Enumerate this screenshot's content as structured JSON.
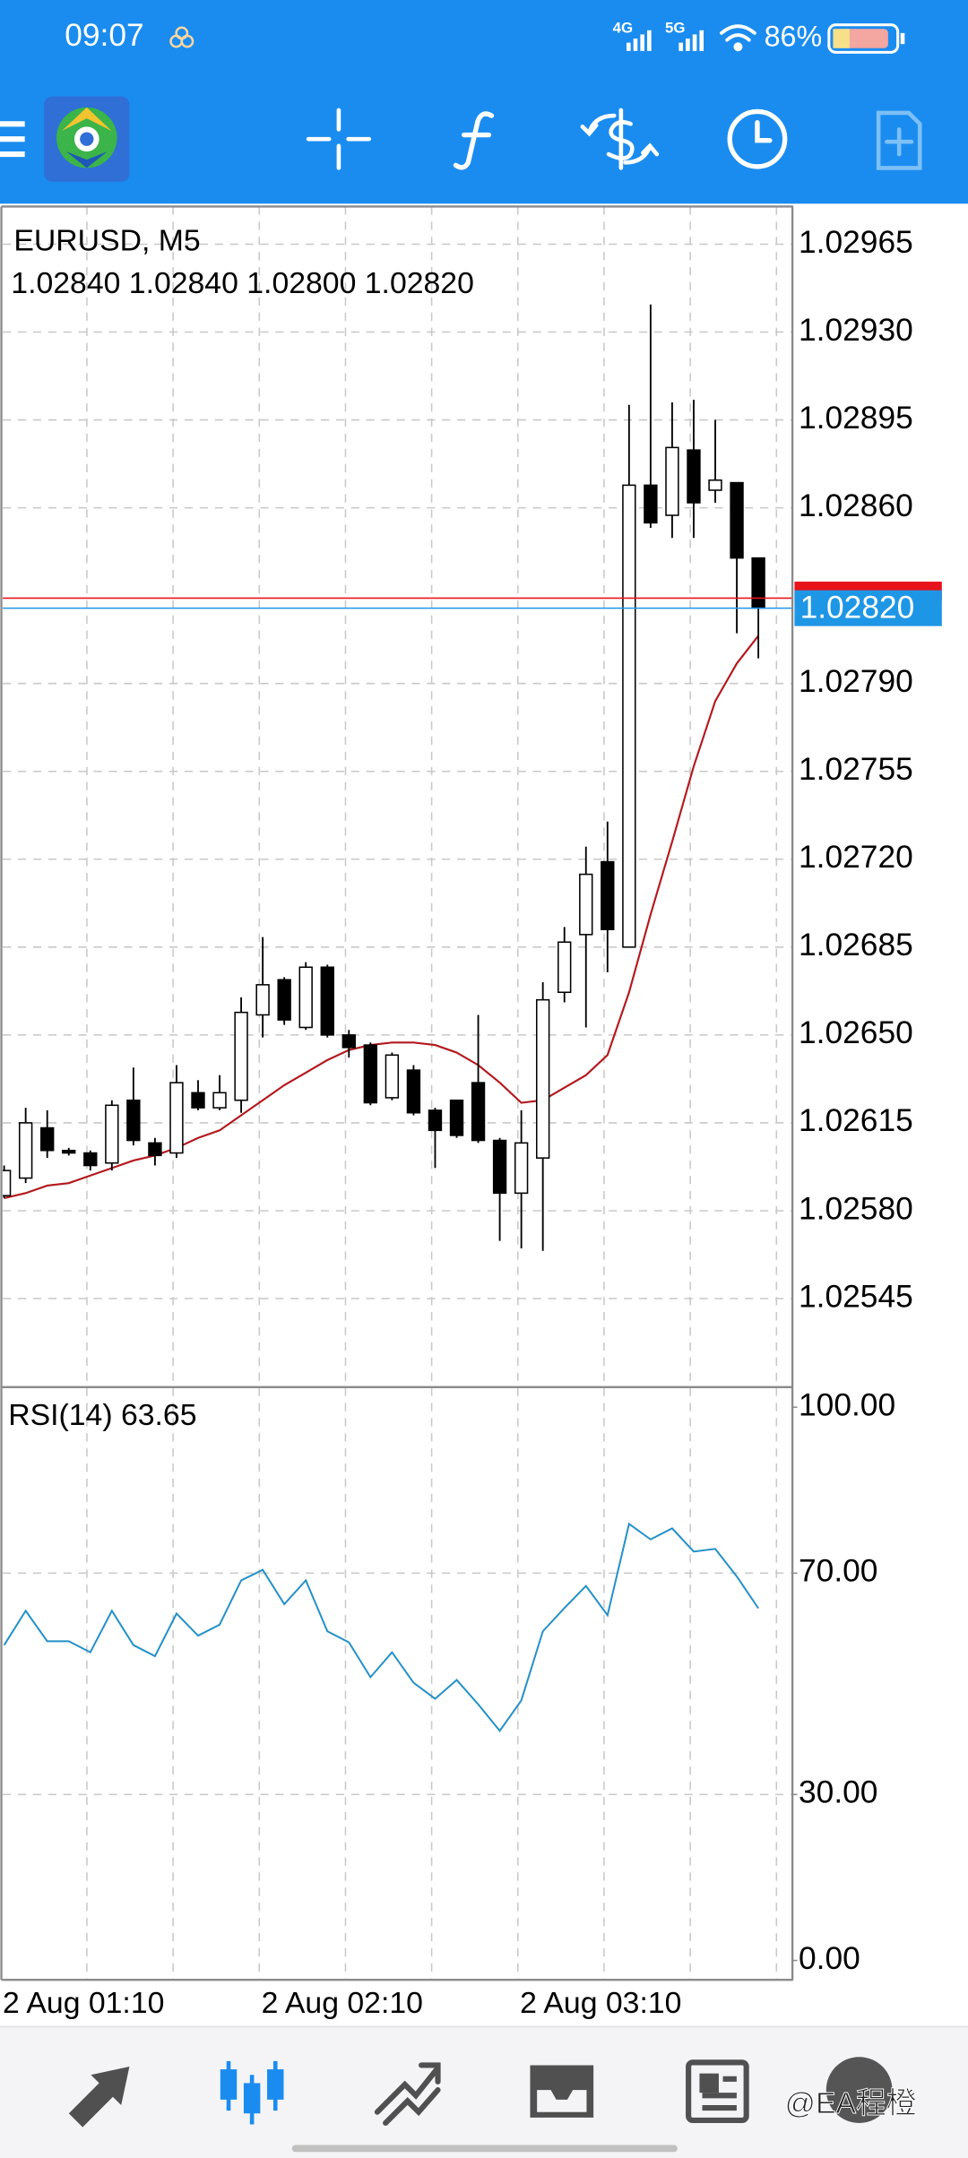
{
  "status_bar": {
    "time": "09:07",
    "network_1": "4G",
    "network_2": "5G",
    "battery": "86%"
  },
  "watermark": "@EA程橙",
  "chart_data": [
    {
      "type": "candlestick",
      "title": "EURUSD, M5",
      "subtitle": "1.02840 1.02840 1.02800 1.02820",
      "categories": [
        "2 Aug 01:10",
        null,
        null,
        null,
        null,
        null,
        null,
        null,
        null,
        null,
        null,
        null,
        "2 Aug 02:10",
        null,
        null,
        null,
        null,
        null,
        null,
        null,
        null,
        null,
        null,
        null,
        "2 Aug 03:10",
        null,
        null,
        null,
        null,
        null,
        null,
        null,
        null,
        null,
        null,
        null
      ],
      "open": [
        1.02586,
        1.02593,
        1.02613,
        1.02604,
        1.02603,
        1.02599,
        1.02624,
        1.02607,
        1.02603,
        1.02627,
        1.02621,
        1.02624,
        1.02658,
        1.02672,
        1.02653,
        1.02677,
        1.0265,
        1.02646,
        1.02625,
        1.02636,
        1.0262,
        1.02624,
        1.02631,
        1.02608,
        1.02587,
        1.02601,
        1.02667,
        1.0269,
        1.02719,
        1.02685,
        1.02869,
        1.02857,
        1.02883,
        1.02867,
        1.0287,
        1.0284
      ],
      "high": [
        1.02598,
        1.02621,
        1.0262,
        1.02605,
        1.02604,
        1.02624,
        1.02637,
        1.02609,
        1.02638,
        1.02632,
        1.02634,
        1.02665,
        1.02689,
        1.02673,
        1.02679,
        1.02678,
        1.02652,
        1.02647,
        1.02643,
        1.02638,
        1.02621,
        1.02624,
        1.02658,
        1.02609,
        1.0262,
        1.02671,
        1.02693,
        1.02725,
        1.02735,
        1.02901,
        1.02941,
        1.02902,
        1.02903,
        1.02895,
        1.0287,
        1.0284
      ],
      "low": [
        1.02585,
        1.02591,
        1.02601,
        1.02602,
        1.02596,
        1.02596,
        1.02606,
        1.02598,
        1.02601,
        1.0262,
        1.0262,
        1.02619,
        1.02649,
        1.02654,
        1.02652,
        1.02649,
        1.02641,
        1.02622,
        1.02624,
        1.02618,
        1.02597,
        1.02609,
        1.02607,
        1.02568,
        1.02565,
        1.02564,
        1.02663,
        1.02653,
        1.02675,
        1.02685,
        1.02852,
        1.02848,
        1.02848,
        1.02862,
        1.0281,
        1.028
      ],
      "close": [
        1.02596,
        1.02615,
        1.02604,
        1.02603,
        1.02598,
        1.02622,
        1.02608,
        1.02602,
        1.02631,
        1.02621,
        1.02627,
        1.02659,
        1.0267,
        1.02656,
        1.02677,
        1.0265,
        1.02645,
        1.02623,
        1.02642,
        1.02619,
        1.02612,
        1.0261,
        1.02608,
        1.02587,
        1.02607,
        1.02664,
        1.02687,
        1.02714,
        1.02692,
        1.02869,
        1.02854,
        1.02884,
        1.02862,
        1.02871,
        1.0284,
        1.0282
      ],
      "up_color": "#ffffff",
      "down_color": "#000000",
      "ma": {
        "color": "#b3191e",
        "values": [
          1.02585,
          1.02587,
          1.0259,
          1.02591,
          1.02594,
          1.02597,
          1.026,
          1.02602,
          1.02605,
          1.02609,
          1.02612,
          1.02618,
          1.02624,
          1.0263,
          1.02635,
          1.0264,
          1.02644,
          1.02646,
          1.02647,
          1.02647,
          1.02646,
          1.02643,
          1.02638,
          1.02631,
          1.02623,
          1.02624,
          1.02629,
          1.02634,
          1.02642,
          1.02667,
          1.02698,
          1.02727,
          1.02757,
          1.02783,
          1.02798,
          1.02809
        ]
      },
      "ask": {
        "value": 1.02824,
        "color": "#e8141c"
      },
      "bid": {
        "value": 1.0282,
        "label": "1.02820",
        "color": "#1e96e6"
      },
      "ylim": [
        1.0251,
        1.0298
      ],
      "yticks": [
        1.02965,
        {
          "value": 1.0293,
          "label": "1.02930"
        },
        1.02895,
        {
          "value": 1.0286,
          "label": "1.02860"
        },
        {
          "value": 1.0279,
          "label": "1.02790"
        },
        1.02755,
        {
          "value": 1.0272,
          "label": "1.02720"
        },
        1.02685,
        {
          "value": 1.0265,
          "label": "1.02650"
        },
        1.02615,
        {
          "value": 1.0258,
          "label": "1.02580"
        },
        1.02545
      ],
      "grid": true
    },
    {
      "type": "line",
      "title": "RSI(14) 63.65",
      "color": "#2390c8",
      "values": [
        57.0,
        63.2,
        57.7,
        57.7,
        55.7,
        63.2,
        57.0,
        55.0,
        62.7,
        58.7,
        60.7,
        68.7,
        70.6,
        64.4,
        68.7,
        59.5,
        57.5,
        51.2,
        55.7,
        50.2,
        47.3,
        50.7,
        46.3,
        41.5,
        47.0,
        59.5,
        63.7,
        67.7,
        62.4,
        78.9,
        76.1,
        78.1,
        73.9,
        74.4,
        69.4,
        63.65
      ],
      "levels": [
        70,
        30
      ],
      "ylim": [
        -3.5,
        103.5
      ],
      "yticks": [
        {
          "value": 100,
          "label": "100.00"
        },
        {
          "value": 70,
          "label": "70.00"
        },
        {
          "value": 30,
          "label": "30.00"
        },
        {
          "value": 0,
          "label": "0.00"
        }
      ]
    }
  ]
}
